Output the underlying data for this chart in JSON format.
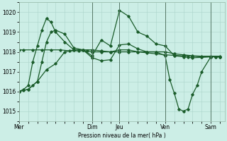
{
  "xlabel": "Pression niveau de la mer( hPa )",
  "bg_color": "#cceee6",
  "grid_color": "#aad4ca",
  "line_color": "#1a5c2a",
  "dark_line_color": "#1a5c2a",
  "ylim": [
    1014.6,
    1020.4
  ],
  "yticks": [
    1015,
    1016,
    1017,
    1018,
    1019,
    1020
  ],
  "day_labels": [
    "Mer",
    "Dim",
    "Jeu",
    "Ven",
    "Sam"
  ],
  "day_positions": [
    0,
    16,
    22,
    32,
    42
  ],
  "xlim": [
    0,
    45
  ],
  "series1_x": [
    0,
    1,
    3,
    5,
    7,
    9,
    11,
    13,
    15,
    16,
    18,
    20,
    22,
    24,
    26,
    28,
    30,
    32,
    34,
    36,
    38,
    40,
    42,
    44
  ],
  "series1_y": [
    1018.1,
    1018.1,
    1018.1,
    1018.1,
    1018.1,
    1018.1,
    1018.05,
    1018.05,
    1018.05,
    1018.0,
    1018.0,
    1018.0,
    1018.0,
    1018.0,
    1018.0,
    1017.95,
    1017.9,
    1017.85,
    1017.82,
    1017.8,
    1017.78,
    1017.75,
    1017.75,
    1017.75
  ],
  "series2_x": [
    0,
    1,
    2,
    3,
    4,
    5,
    6,
    7,
    8,
    10,
    12,
    14,
    16,
    18,
    20,
    22,
    24,
    26,
    28,
    30,
    32,
    34,
    36,
    37,
    38,
    40,
    42,
    43,
    44
  ],
  "series2_y": [
    1016.0,
    1016.1,
    1016.3,
    1017.5,
    1018.3,
    1019.1,
    1019.7,
    1019.5,
    1019.0,
    1018.5,
    1018.1,
    1018.1,
    1017.8,
    1018.6,
    1018.3,
    1020.1,
    1019.8,
    1019.0,
    1018.8,
    1018.4,
    1018.3,
    1017.8,
    1017.75,
    1017.72,
    1017.7,
    1017.72,
    1017.75,
    1017.75,
    1017.75
  ],
  "series3_x": [
    0,
    1,
    2,
    3,
    4,
    5,
    6,
    7,
    8,
    10,
    12,
    14,
    16,
    18,
    20,
    22,
    24,
    26,
    28,
    30,
    32,
    34,
    36,
    38,
    40,
    42,
    44
  ],
  "series3_y": [
    1016.0,
    1016.05,
    1016.1,
    1016.3,
    1016.5,
    1017.5,
    1018.5,
    1019.0,
    1019.1,
    1018.9,
    1018.2,
    1018.1,
    1018.1,
    1018.05,
    1018.0,
    1018.1,
    1018.1,
    1018.0,
    1018.0,
    1018.0,
    1018.0,
    1017.9,
    1017.85,
    1017.8,
    1017.78,
    1017.78,
    1017.78
  ],
  "series4_x": [
    0,
    2,
    4,
    6,
    8,
    10,
    12,
    14,
    16,
    18,
    20,
    22,
    24,
    26,
    28,
    30,
    32,
    33,
    34,
    35,
    36,
    37,
    38,
    39,
    40,
    42,
    43,
    44
  ],
  "series4_y": [
    1016.0,
    1016.1,
    1016.5,
    1017.1,
    1017.4,
    1018.0,
    1018.1,
    1018.1,
    1017.7,
    1017.55,
    1017.6,
    1018.35,
    1018.4,
    1018.15,
    1018.0,
    1018.0,
    1017.8,
    1016.6,
    1015.9,
    1015.1,
    1015.0,
    1015.1,
    1015.85,
    1016.3,
    1017.0,
    1017.75,
    1017.75,
    1017.75
  ]
}
